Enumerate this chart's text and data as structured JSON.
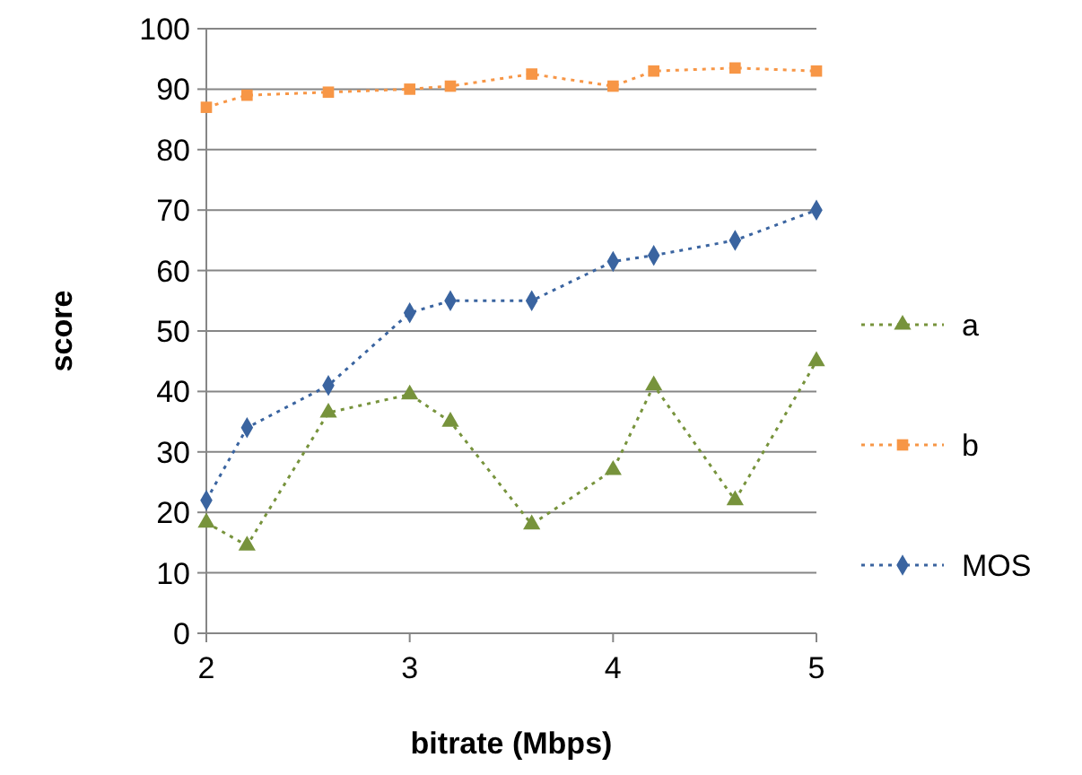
{
  "chart_data": {
    "type": "line",
    "xlabel": "bitrate (Mbps)",
    "ylabel": "score",
    "x": [
      2,
      2.2,
      2.6,
      3,
      3.2,
      3.6,
      4,
      4.2,
      4.6,
      5
    ],
    "series": [
      {
        "name": "a",
        "color": "#77933c",
        "marker": "triangle",
        "values": [
          18.3,
          14.5,
          36.5,
          39.5,
          35,
          18,
          27,
          41,
          22,
          45
        ]
      },
      {
        "name": "b",
        "color": "#f79646",
        "marker": "square",
        "values": [
          87,
          89,
          89.5,
          90,
          90.5,
          92.5,
          90.5,
          93,
          93.5,
          93
        ]
      },
      {
        "name": "MOS",
        "color": "#3a64a0",
        "marker": "diamond",
        "values": [
          22,
          34,
          41,
          53,
          55,
          55,
          61.5,
          62.5,
          65,
          70
        ]
      }
    ],
    "xlim": [
      2,
      5
    ],
    "xticks": [
      2,
      3,
      4,
      5
    ],
    "ylim": [
      0,
      100
    ],
    "yticks": [
      0,
      10,
      20,
      30,
      40,
      50,
      60,
      70,
      80,
      90,
      100
    ],
    "grid": "y",
    "legend": "right",
    "line_style": "dotted"
  }
}
